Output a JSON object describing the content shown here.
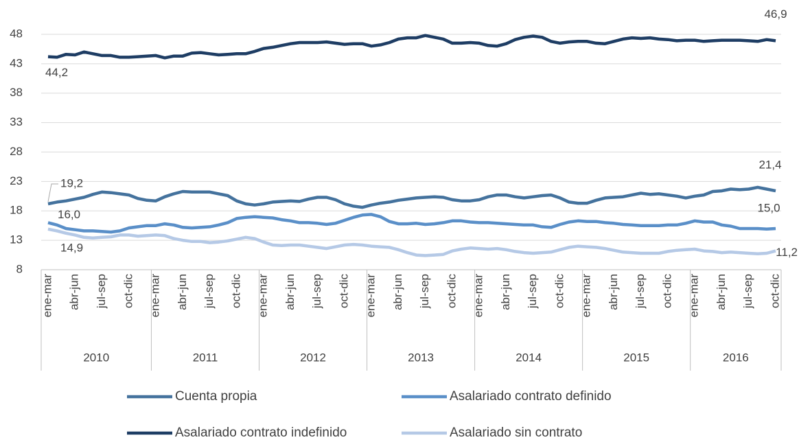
{
  "chart_data": {
    "type": "line",
    "categories": [
      "ene-mar",
      null,
      null,
      "abr-jun",
      null,
      null,
      "jul-sep",
      null,
      null,
      "oct-dic",
      null,
      null,
      "ene-mar",
      null,
      null,
      "abr-jun",
      null,
      null,
      "jul-sep",
      null,
      null,
      "oct-dic",
      null,
      null,
      "ene-mar",
      null,
      null,
      "abr-jun",
      null,
      null,
      "jul-sep",
      null,
      null,
      "oct-dic",
      null,
      null,
      "ene-mar",
      null,
      null,
      "abr-jun",
      null,
      null,
      "jul-sep",
      null,
      null,
      "oct-dic",
      null,
      null,
      "ene-mar",
      null,
      null,
      "abr-jun",
      null,
      null,
      "jul-sep",
      null,
      null,
      "oct-dic",
      null,
      null,
      "ene-mar",
      null,
      null,
      "abr-jun",
      null,
      null,
      "jul-sep",
      null,
      null,
      "oct-dic",
      null,
      null,
      "ene-mar",
      null,
      null,
      "abr-jun",
      null,
      null,
      "jul-sep",
      null,
      null,
      "oct-dic"
    ],
    "years": [
      "2010",
      "2011",
      "2012",
      "2013",
      "2014",
      "2015",
      "2016"
    ],
    "ylim": [
      8,
      48
    ],
    "yticks": [
      8,
      13,
      18,
      23,
      28,
      33,
      38,
      43,
      48
    ],
    "grid": true,
    "series": [
      {
        "name": "Cuenta propia",
        "color": "#44729d",
        "values": [
          19.2,
          19.5,
          19.7,
          20.0,
          20.3,
          20.8,
          21.2,
          21.1,
          20.9,
          20.7,
          20.1,
          19.8,
          19.7,
          20.4,
          20.9,
          21.3,
          21.2,
          21.2,
          21.2,
          20.9,
          20.6,
          19.7,
          19.2,
          19.0,
          19.2,
          19.5,
          19.6,
          19.7,
          19.6,
          20.0,
          20.3,
          20.3,
          19.9,
          19.2,
          18.8,
          18.6,
          19.0,
          19.3,
          19.5,
          19.8,
          20.0,
          20.2,
          20.3,
          20.4,
          20.3,
          19.9,
          19.7,
          19.7,
          19.9,
          20.4,
          20.7,
          20.7,
          20.4,
          20.2,
          20.4,
          20.6,
          20.7,
          20.2,
          19.5,
          19.3,
          19.3,
          19.8,
          20.2,
          20.3,
          20.4,
          20.7,
          21.0,
          20.8,
          20.9,
          20.7,
          20.5,
          20.2,
          20.5,
          20.7,
          21.3,
          21.4,
          21.7,
          21.6,
          21.7,
          22.0,
          21.7,
          21.4
        ],
        "value_labels": [
          "19,2",
          null,
          null,
          null,
          null,
          null,
          null,
          null,
          null,
          null,
          null,
          null,
          null,
          null,
          null,
          null,
          null,
          null,
          null,
          null,
          null,
          null,
          null,
          null,
          null,
          null,
          null,
          null,
          null,
          null,
          null,
          null,
          null,
          null,
          null,
          null,
          null,
          null,
          null,
          null,
          null,
          null,
          null,
          null,
          null,
          null,
          null,
          null,
          null,
          null,
          null,
          null,
          null,
          null,
          null,
          null,
          null,
          null,
          null,
          null,
          null,
          null,
          null,
          null,
          null,
          null,
          null,
          null,
          null,
          null,
          null,
          null,
          null,
          null,
          null,
          null,
          null,
          null,
          null,
          null,
          null,
          "21,4"
        ]
      },
      {
        "name": "Asalariado contrato definido",
        "color": "#5a8fc8",
        "values": [
          16.0,
          15.6,
          15.0,
          14.8,
          14.6,
          14.6,
          14.5,
          14.4,
          14.6,
          15.1,
          15.3,
          15.5,
          15.5,
          15.8,
          15.6,
          15.2,
          15.1,
          15.2,
          15.3,
          15.6,
          16.0,
          16.7,
          16.9,
          17.0,
          16.9,
          16.8,
          16.5,
          16.3,
          16.0,
          16.0,
          15.9,
          15.7,
          15.9,
          16.4,
          16.9,
          17.3,
          17.4,
          17.0,
          16.2,
          15.8,
          15.8,
          15.9,
          15.7,
          15.8,
          16.0,
          16.3,
          16.3,
          16.1,
          16.0,
          16.0,
          15.9,
          15.8,
          15.7,
          15.6,
          15.6,
          15.3,
          15.2,
          15.7,
          16.1,
          16.3,
          16.2,
          16.2,
          16.0,
          15.9,
          15.7,
          15.6,
          15.5,
          15.5,
          15.5,
          15.6,
          15.6,
          15.9,
          16.3,
          16.1,
          16.1,
          15.6,
          15.4,
          15.0,
          15.0,
          15.0,
          14.9,
          15.0
        ],
        "value_labels": [
          "16,0",
          null,
          null,
          null,
          null,
          null,
          null,
          null,
          null,
          null,
          null,
          null,
          null,
          null,
          null,
          null,
          null,
          null,
          null,
          null,
          null,
          null,
          null,
          null,
          null,
          null,
          null,
          null,
          null,
          null,
          null,
          null,
          null,
          null,
          null,
          null,
          null,
          null,
          null,
          null,
          null,
          null,
          null,
          null,
          null,
          null,
          null,
          null,
          null,
          null,
          null,
          null,
          null,
          null,
          null,
          null,
          null,
          null,
          null,
          null,
          null,
          null,
          null,
          null,
          null,
          null,
          null,
          null,
          null,
          null,
          null,
          null,
          null,
          null,
          null,
          null,
          null,
          null,
          null,
          null,
          null,
          "15,0"
        ]
      },
      {
        "name": "Asalariado contrato indefinido",
        "color": "#1e3d64",
        "values": [
          44.2,
          44.1,
          44.6,
          44.5,
          45.0,
          44.7,
          44.4,
          44.4,
          44.1,
          44.1,
          44.2,
          44.3,
          44.4,
          44.0,
          44.3,
          44.3,
          44.8,
          44.9,
          44.7,
          44.5,
          44.6,
          44.7,
          44.7,
          45.1,
          45.6,
          45.8,
          46.1,
          46.4,
          46.6,
          46.6,
          46.6,
          46.7,
          46.5,
          46.3,
          46.4,
          46.4,
          46.0,
          46.2,
          46.6,
          47.2,
          47.4,
          47.4,
          47.8,
          47.5,
          47.2,
          46.5,
          46.5,
          46.6,
          46.5,
          46.1,
          46.0,
          46.4,
          47.1,
          47.5,
          47.7,
          47.5,
          46.8,
          46.5,
          46.7,
          46.8,
          46.8,
          46.5,
          46.4,
          46.8,
          47.2,
          47.4,
          47.3,
          47.4,
          47.2,
          47.1,
          46.9,
          47.0,
          47.0,
          46.8,
          46.9,
          47.0,
          47.0,
          47.0,
          46.9,
          46.8,
          47.1,
          46.9
        ],
        "value_labels": [
          "44,2",
          null,
          null,
          null,
          null,
          null,
          null,
          null,
          null,
          null,
          null,
          null,
          null,
          null,
          null,
          null,
          null,
          null,
          null,
          null,
          null,
          null,
          null,
          null,
          null,
          null,
          null,
          null,
          null,
          null,
          null,
          null,
          null,
          null,
          null,
          null,
          null,
          null,
          null,
          null,
          null,
          null,
          null,
          null,
          null,
          null,
          null,
          null,
          null,
          null,
          null,
          null,
          null,
          null,
          null,
          null,
          null,
          null,
          null,
          null,
          null,
          null,
          null,
          null,
          null,
          null,
          null,
          null,
          null,
          null,
          null,
          null,
          null,
          null,
          null,
          null,
          null,
          null,
          null,
          null,
          null,
          "46,9"
        ]
      },
      {
        "name": "Asalariado sin contrato",
        "color": "#b5c9e6",
        "values": [
          14.9,
          14.6,
          14.2,
          13.9,
          13.5,
          13.4,
          13.5,
          13.6,
          13.9,
          13.9,
          13.7,
          13.8,
          13.9,
          13.8,
          13.3,
          13.0,
          12.8,
          12.8,
          12.6,
          12.7,
          12.9,
          13.2,
          13.5,
          13.3,
          12.7,
          12.2,
          12.1,
          12.2,
          12.2,
          12.0,
          11.8,
          11.6,
          11.9,
          12.2,
          12.3,
          12.2,
          12.0,
          11.9,
          11.8,
          11.4,
          10.9,
          10.5,
          10.4,
          10.5,
          10.6,
          11.2,
          11.5,
          11.7,
          11.6,
          11.5,
          11.6,
          11.4,
          11.1,
          10.9,
          10.8,
          10.9,
          11.0,
          11.4,
          11.8,
          12.0,
          11.9,
          11.8,
          11.6,
          11.3,
          11.0,
          10.9,
          10.8,
          10.8,
          10.8,
          11.1,
          11.3,
          11.4,
          11.5,
          11.2,
          11.1,
          10.9,
          11.0,
          10.9,
          10.8,
          10.7,
          10.8,
          11.2
        ],
        "value_labels": [
          "14,9",
          null,
          null,
          null,
          null,
          null,
          null,
          null,
          null,
          null,
          null,
          null,
          null,
          null,
          null,
          null,
          null,
          null,
          null,
          null,
          null,
          null,
          null,
          null,
          null,
          null,
          null,
          null,
          null,
          null,
          null,
          null,
          null,
          null,
          null,
          null,
          null,
          null,
          null,
          null,
          null,
          null,
          null,
          null,
          null,
          null,
          null,
          null,
          null,
          null,
          null,
          null,
          null,
          null,
          null,
          null,
          null,
          null,
          null,
          null,
          null,
          null,
          null,
          null,
          null,
          null,
          null,
          null,
          null,
          null,
          null,
          null,
          null,
          null,
          null,
          null,
          null,
          null,
          null,
          null,
          null,
          "11,2"
        ]
      }
    ]
  }
}
